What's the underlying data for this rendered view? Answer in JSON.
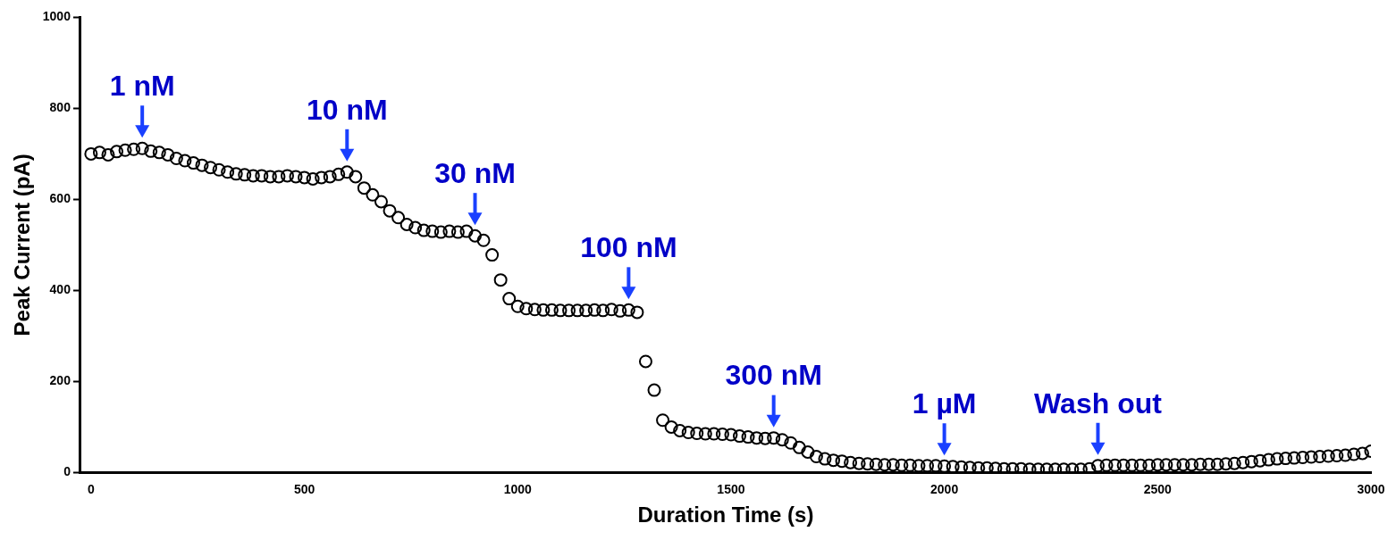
{
  "chart_data": {
    "type": "scatter",
    "xlabel": "Duration Time (s)",
    "ylabel": "Peak Current (pA)",
    "xlim": [
      -25,
      3000
    ],
    "xticks": [
      0,
      500,
      1000,
      1500,
      2000,
      2500,
      3000
    ],
    "ylim": [
      0,
      1000
    ],
    "yticks": [
      0,
      200,
      400,
      600,
      800,
      1000
    ],
    "grid": false,
    "legend": false,
    "marker": "circle",
    "x": [
      0,
      20,
      40,
      60,
      80,
      100,
      120,
      140,
      160,
      180,
      200,
      220,
      240,
      260,
      280,
      300,
      320,
      340,
      360,
      380,
      400,
      420,
      440,
      460,
      480,
      500,
      520,
      540,
      560,
      580,
      600,
      620,
      640,
      660,
      680,
      700,
      720,
      740,
      760,
      780,
      800,
      820,
      840,
      860,
      880,
      900,
      920,
      940,
      960,
      980,
      1000,
      1020,
      1040,
      1060,
      1080,
      1100,
      1120,
      1140,
      1160,
      1180,
      1200,
      1220,
      1240,
      1260,
      1280,
      1300,
      1320,
      1340,
      1360,
      1380,
      1400,
      1420,
      1440,
      1460,
      1480,
      1500,
      1520,
      1540,
      1560,
      1580,
      1600,
      1620,
      1640,
      1660,
      1680,
      1700,
      1720,
      1740,
      1760,
      1780,
      1800,
      1820,
      1840,
      1860,
      1880,
      1900,
      1920,
      1940,
      1960,
      1980,
      2000,
      2020,
      2040,
      2060,
      2080,
      2100,
      2120,
      2140,
      2160,
      2180,
      2200,
      2220,
      2240,
      2260,
      2280,
      2300,
      2320,
      2340,
      2360,
      2380,
      2400,
      2420,
      2440,
      2460,
      2480,
      2500,
      2520,
      2540,
      2560,
      2580,
      2600,
      2620,
      2640,
      2660,
      2680,
      2700,
      2720,
      2740,
      2760,
      2780,
      2800,
      2820,
      2840,
      2860,
      2880,
      2900,
      2920,
      2940,
      2960,
      2980,
      3000
    ],
    "series": [
      {
        "color": "#000000",
        "values": [
          700,
          703,
          698,
          705,
          708,
          710,
          712,
          706,
          703,
          698,
          690,
          685,
          680,
          675,
          670,
          665,
          660,
          656,
          654,
          652,
          652,
          650,
          650,
          652,
          650,
          648,
          645,
          648,
          650,
          655,
          660,
          650,
          625,
          610,
          595,
          575,
          560,
          545,
          538,
          532,
          530,
          528,
          530,
          528,
          530,
          520,
          510,
          478,
          423,
          382,
          365,
          360,
          358,
          357,
          357,
          356,
          356,
          356,
          356,
          357,
          356,
          358,
          355,
          357,
          352,
          244,
          181,
          115,
          100,
          92,
          88,
          86,
          85,
          85,
          84,
          83,
          80,
          78,
          76,
          75,
          76,
          72,
          65,
          55,
          45,
          35,
          30,
          27,
          25,
          22,
          20,
          19,
          18,
          17,
          17,
          16,
          16,
          15,
          15,
          15,
          14,
          13,
          12,
          11,
          10,
          10,
          9,
          8,
          8,
          8,
          7,
          7,
          7,
          7,
          7,
          7,
          7,
          8,
          15,
          16,
          16,
          16,
          16,
          16,
          16,
          17,
          17,
          17,
          17,
          17,
          18,
          18,
          18,
          19,
          20,
          22,
          24,
          26,
          28,
          30,
          31,
          32,
          33,
          34,
          35,
          36,
          37,
          38,
          40,
          42,
          47
        ]
      }
    ],
    "annotations": [
      {
        "text": "1 nM",
        "x": 120,
        "y": 712
      },
      {
        "text": "10 nM",
        "x": 600,
        "y": 660
      },
      {
        "text": "30 nM",
        "x": 900,
        "y": 520
      },
      {
        "text": "100 nM",
        "x": 1260,
        "y": 357
      },
      {
        "text": "300 nM",
        "x": 1600,
        "y": 76
      },
      {
        "text": "1 µM",
        "x": 2000,
        "y": 14
      },
      {
        "text": "Wash out",
        "x": 2360,
        "y": 15
      }
    ]
  }
}
